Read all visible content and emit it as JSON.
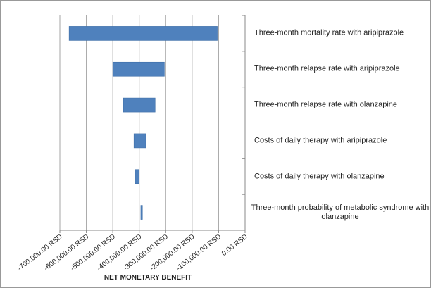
{
  "chart_data": {
    "type": "tornado",
    "x_label": "NET MONETARY BENEFIT",
    "categories": [
      "Three-month mortality rate with aripiprazole",
      "Three-month relapse rate with aripiprazole",
      "Three-month relapse rate with olanzapine",
      "Costs of daily therapy with aripiprazole",
      "Costs of daily therapy with olanzapine",
      "Three-month probability of metabolic syndrome with olanzapine"
    ],
    "values": [
      [
        -665000,
        -105000
      ],
      [
        -500000,
        -305000
      ],
      [
        -460000,
        -340000
      ],
      [
        -420000,
        -375000
      ],
      [
        -415000,
        -400000
      ],
      [
        -394000,
        -388000
      ]
    ],
    "color": "#4f81bd",
    "xlim": [
      -700000,
      0
    ],
    "xticks": [
      {
        "value": -700000,
        "label": "-700,000.00 RSD"
      },
      {
        "value": -600000,
        "label": "-600,000.00 RSD"
      },
      {
        "value": -500000,
        "label": "-500,000.00 RSD"
      },
      {
        "value": -400000,
        "label": "-400,000.00 RSD"
      },
      {
        "value": -300000,
        "label": "-300,000.00 RSD"
      },
      {
        "value": -200000,
        "label": "-200,000.00 RSD"
      },
      {
        "value": -100000,
        "label": "-100,000.00 RSD"
      },
      {
        "value": 0,
        "label": "0.00 RSD"
      }
    ],
    "grid": true
  }
}
